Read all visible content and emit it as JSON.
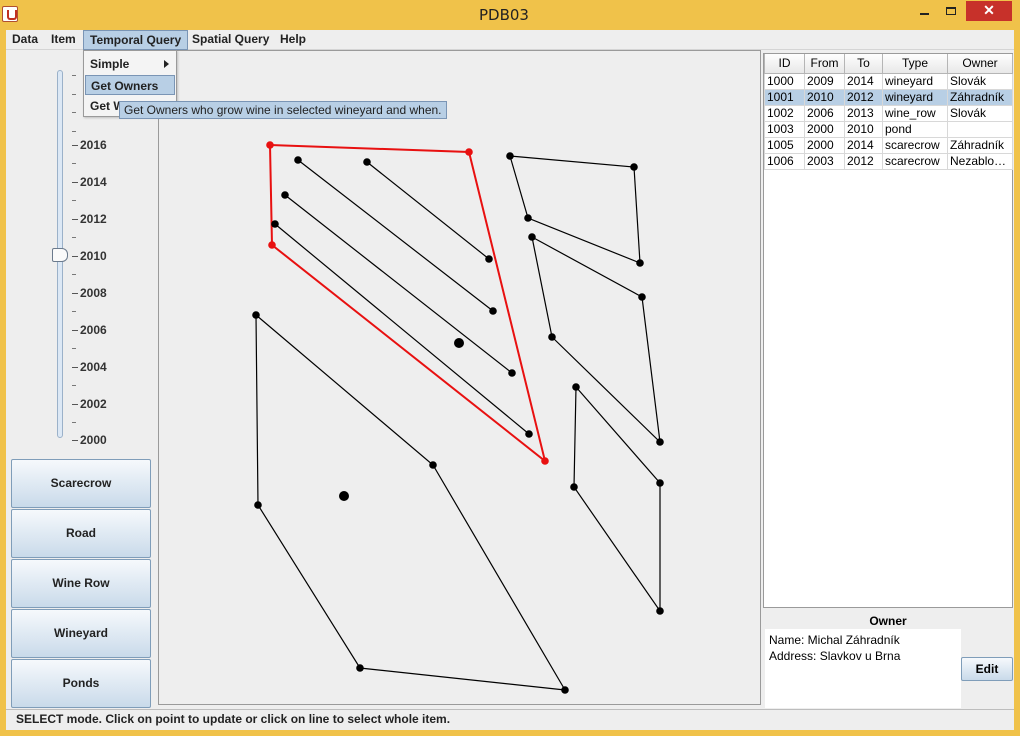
{
  "window": {
    "title": "PDB03"
  },
  "menubar": {
    "items": [
      "Data",
      "Item",
      "Temporal Query",
      "Spatial Query",
      "Help"
    ]
  },
  "dropdown": {
    "items": [
      "Simple",
      "Get Owners",
      "Get W"
    ]
  },
  "tooltip": {
    "text": "Get Owners who grow wine in selected wineyard and when."
  },
  "slider": {
    "years": [
      "2016",
      "2014",
      "2012",
      "2010",
      "2008",
      "2006",
      "2004",
      "2002",
      "2000"
    ],
    "value": "2010"
  },
  "buttons": [
    "Scarecrow",
    "Road",
    "Wine Row",
    "Wineyard",
    "Ponds"
  ],
  "table": {
    "headers": [
      "ID",
      "From",
      "To",
      "Type",
      "Owner"
    ],
    "rows": [
      [
        "1000",
        "2009",
        "2014",
        "wineyard",
        "Slovák"
      ],
      [
        "1001",
        "2010",
        "2012",
        "wineyard",
        "Záhradník"
      ],
      [
        "1002",
        "2006",
        "2013",
        "wine_row",
        "Slovák"
      ],
      [
        "1003",
        "2000",
        "2010",
        "pond",
        ""
      ],
      [
        "1005",
        "2000",
        "2014",
        "scarecrow",
        "Záhradník"
      ],
      [
        "1006",
        "2003",
        "2012",
        "scarecrow",
        "Nezablou..."
      ]
    ],
    "selected_index": 1
  },
  "owner": {
    "title": "Owner",
    "name_line": "Name: Michal Záhradník",
    "address_line": "Address: Slavkov u Brna",
    "edit_label": "Edit"
  },
  "status": {
    "text": "SELECT mode. Click on point to update or click on line to select whole item."
  },
  "colors": {
    "selected_item": "#e81010",
    "items": "#000000",
    "menu_highlight": "#b8cfe5"
  }
}
